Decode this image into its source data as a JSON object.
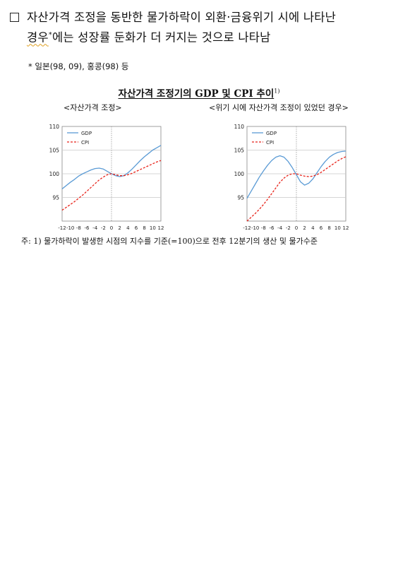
{
  "bullet": {
    "part1": "자산가격 조정을 동반한 물가하락이 외환·금융위기 시에 나타난",
    "squig": "경우",
    "star": "*",
    "part2": "에는 성장률 둔화가 더 커지는 것으로 나타남"
  },
  "footnote": "*  일본(98, 09), 홍콩(98) 등",
  "figure": {
    "title": "자산가격 조정기의 GDP 및 CPI 추이",
    "title_note": "1)",
    "subtitle_left": "<자산가격 조정>",
    "subtitle_right": "<위기 시에 자산가격 조정이 있었던 경우>"
  },
  "note": "주: 1) 물가하락이 발생한 시점의 지수를 기준(=100)으로 전후 12분기의 생산 및 물가수준",
  "colors": {
    "gdp": "#5b9bd5",
    "cpi": "#e8231a",
    "grid": "#c8c8c8",
    "axis": "#888888"
  },
  "chart_data": [
    {
      "type": "line",
      "title": "<자산가격 조정>",
      "x": [
        -12,
        -11,
        -10,
        -9,
        -8,
        -7,
        -6,
        -5,
        -4,
        -3,
        -2,
        -1,
        0,
        1,
        2,
        3,
        4,
        5,
        6,
        7,
        8,
        9,
        10,
        11,
        12
      ],
      "xticks": [
        -12,
        -10,
        -8,
        -6,
        -4,
        -2,
        0,
        2,
        4,
        6,
        8,
        10,
        12
      ],
      "yticks": [
        95,
        100,
        105,
        110
      ],
      "ylim": [
        90,
        110
      ],
      "xlim": [
        -12,
        12
      ],
      "legend_position": "top-left",
      "series": [
        {
          "name": "GDP",
          "values": [
            96.8,
            97.5,
            98.2,
            98.8,
            99.5,
            100.0,
            100.4,
            100.8,
            101.1,
            101.2,
            101.0,
            100.5,
            100.0,
            99.6,
            99.4,
            99.6,
            100.2,
            101.0,
            101.9,
            102.8,
            103.6,
            104.3,
            105.0,
            105.5,
            106.0
          ]
        },
        {
          "name": "CPI",
          "values": [
            92.3,
            92.9,
            93.5,
            94.1,
            94.8,
            95.5,
            96.3,
            97.1,
            97.9,
            98.7,
            99.3,
            99.8,
            100.0,
            99.8,
            99.6,
            99.6,
            99.8,
            100.1,
            100.5,
            100.9,
            101.3,
            101.7,
            102.1,
            102.5,
            102.8
          ]
        }
      ]
    },
    {
      "type": "line",
      "title": "<위기 시에 자산가격 조정이 있었던 경우>",
      "x": [
        -12,
        -11,
        -10,
        -9,
        -8,
        -7,
        -6,
        -5,
        -4,
        -3,
        -2,
        -1,
        0,
        1,
        2,
        3,
        4,
        5,
        6,
        7,
        8,
        9,
        10,
        11,
        12
      ],
      "xticks": [
        -12,
        -10,
        -8,
        -6,
        -4,
        -2,
        0,
        2,
        4,
        6,
        8,
        10,
        12
      ],
      "yticks": [
        95,
        100,
        105,
        110
      ],
      "ylim": [
        90,
        110
      ],
      "xlim": [
        -12,
        12
      ],
      "legend_position": "top-left",
      "series": [
        {
          "name": "GDP",
          "values": [
            94.8,
            96.3,
            97.8,
            99.3,
            100.6,
            101.8,
            102.8,
            103.5,
            103.8,
            103.5,
            102.6,
            101.3,
            99.8,
            98.3,
            97.6,
            98.0,
            98.9,
            100.2,
            101.5,
            102.6,
            103.5,
            104.1,
            104.5,
            104.7,
            104.8
          ]
        },
        {
          "name": "CPI",
          "values": [
            90.0,
            90.8,
            91.6,
            92.5,
            93.5,
            94.6,
            95.8,
            97.0,
            98.2,
            99.1,
            99.7,
            100.0,
            100.0,
            99.7,
            99.5,
            99.4,
            99.5,
            99.8,
            100.3,
            100.9,
            101.5,
            102.1,
            102.7,
            103.2,
            103.6
          ]
        }
      ]
    }
  ]
}
